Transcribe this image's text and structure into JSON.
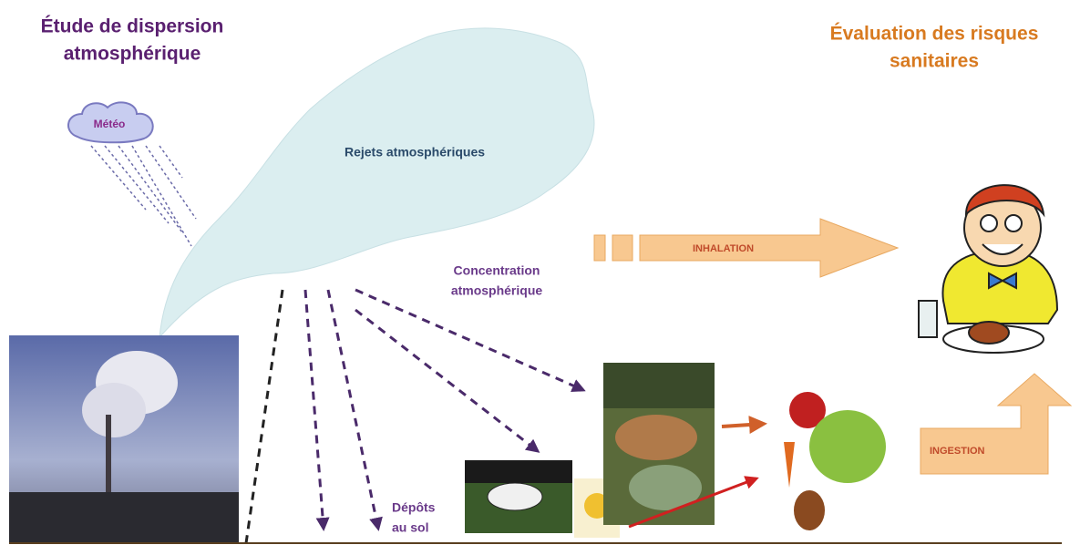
{
  "titles": {
    "left": [
      "Étude de dispersion",
      "atmosphérique"
    ],
    "right": [
      "Évaluation des risques",
      "sanitaires"
    ]
  },
  "labels": {
    "meteo": "Météo",
    "rejets": "Rejets atmosphériques",
    "inhalation": "INHALATION",
    "concentration": [
      "Concentration",
      "atmosphérique"
    ],
    "depots": [
      "Dépôts",
      "au sol"
    ],
    "ingestion": "INGESTION"
  }
}
